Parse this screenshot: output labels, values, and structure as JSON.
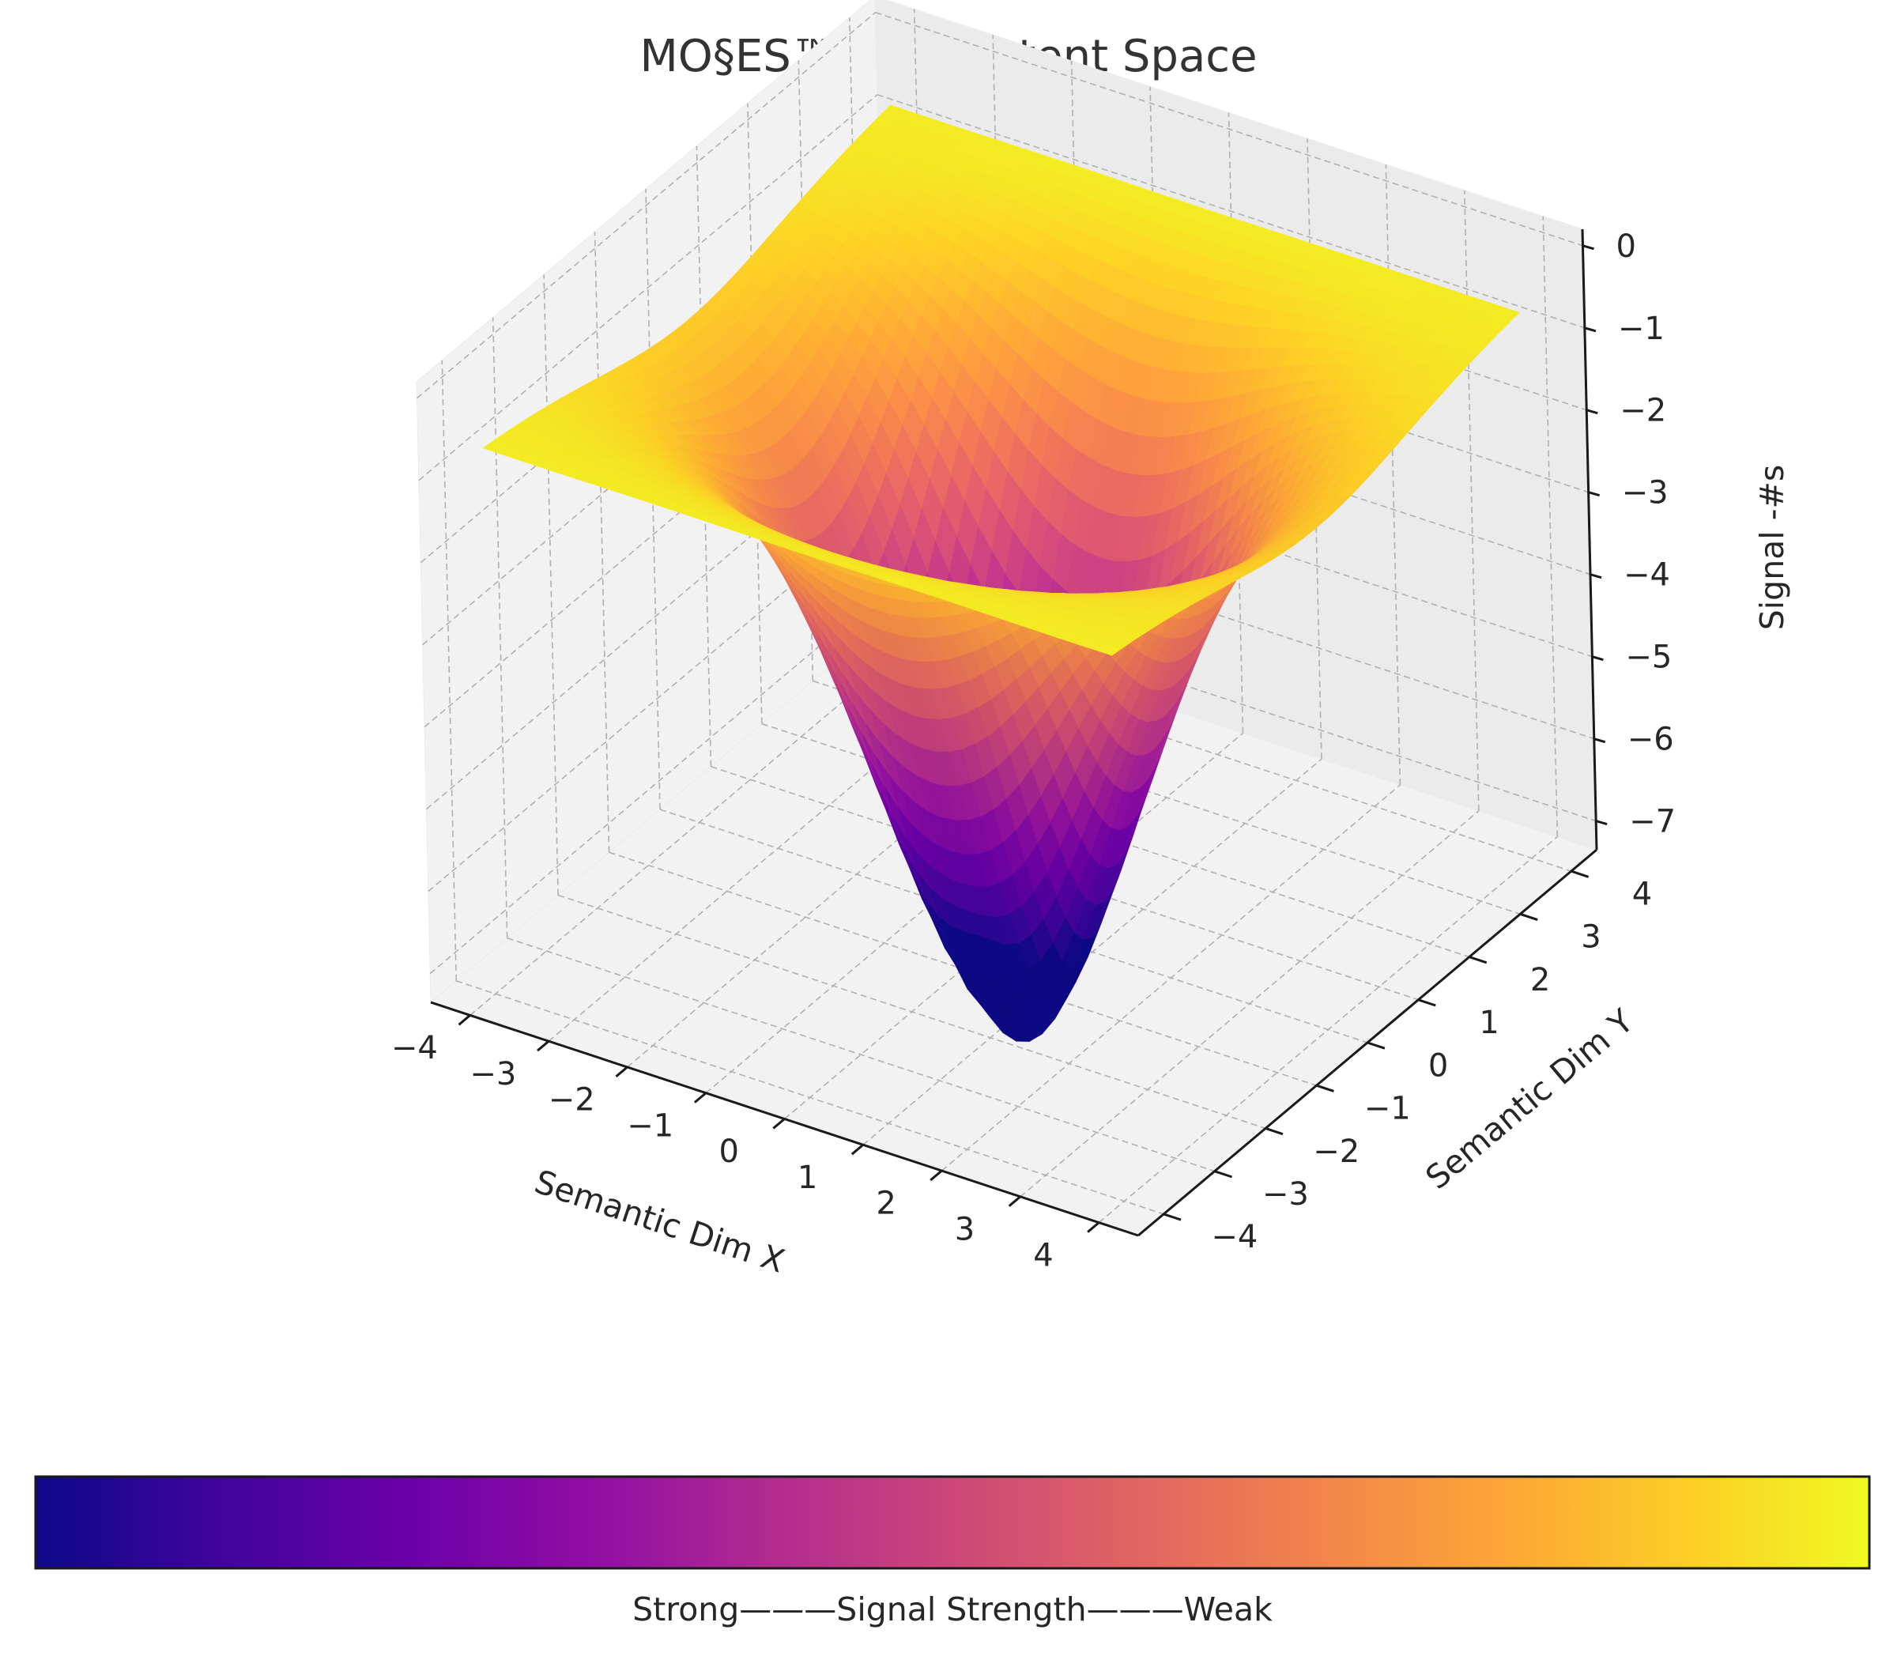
{
  "chart_data": {
    "type": "surface3d",
    "title": "MO§ES™ Bent Latent Space",
    "xlabel": "Semantic Dim X",
    "ylabel": "Semantic Dim Y",
    "zlabel": "Signal -#s",
    "x_range": [
      -4.5,
      4.5
    ],
    "y_range": [
      -4.5,
      4.5
    ],
    "z_range": [
      -7.35,
      0.2
    ],
    "x_ticks": [
      -4,
      -3,
      -2,
      -1,
      0,
      1,
      2,
      3,
      4
    ],
    "y_ticks": [
      -4,
      -3,
      -2,
      -1,
      0,
      1,
      2,
      3,
      4
    ],
    "z_ticks": [
      0,
      -1,
      -2,
      -3,
      -4,
      -5,
      -6,
      -7
    ],
    "x_tick_labels": [
      "−4",
      "−3",
      "−2",
      "−1",
      "0",
      "1",
      "2",
      "3",
      "4"
    ],
    "y_tick_labels": [
      "−4",
      "−3",
      "−2",
      "−1",
      "0",
      "1",
      "2",
      "3",
      "4"
    ],
    "z_tick_labels": [
      "0",
      "−1",
      "−2",
      "−3",
      "−4",
      "−5",
      "−6",
      "−7"
    ],
    "surface": {
      "function": "z = -7.3 * exp(-r^2 / 4) - 2.2 + cos-ripple",
      "minimum": -7.3,
      "maximum": -0.5,
      "grid_points": 48
    },
    "colormap": "plasma",
    "colorbar": {
      "orientation": "horizontal",
      "label": "Strong———Signal Strength———Weak"
    }
  }
}
